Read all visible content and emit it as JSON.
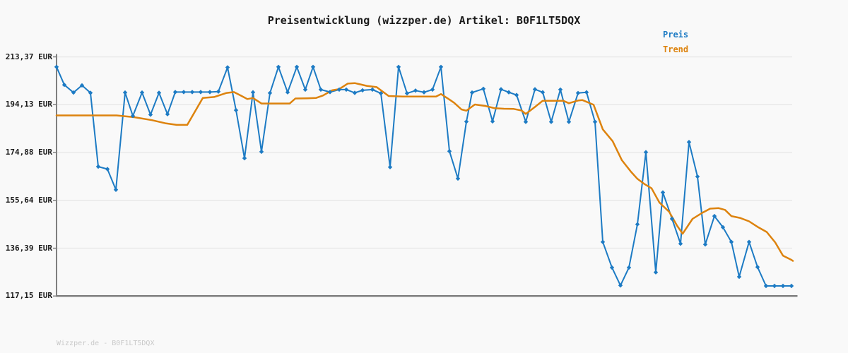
{
  "title": "Preisentwicklung (wizzper.de) Artikel: B0F1LT5DQX",
  "legend": {
    "preis": "Preis",
    "trend": "Trend"
  },
  "watermark": "Wizzper.de - B0F1LT5DQX",
  "colors": {
    "preis": "#1d7bc4",
    "trend": "#dd830e",
    "axis": "#7f7f7f",
    "grid": "#e9e9e9",
    "background": "#f9f9f9",
    "label": "#1a1a1a",
    "watermark": "#c9c9c9"
  },
  "y_axis": {
    "unit": "EUR",
    "tick_labels": [
      "213,37 EUR",
      "194,13 EUR",
      "174,88 EUR",
      "155,64 EUR",
      "136,39 EUR",
      "117,15 EUR"
    ],
    "tick_values": [
      213.37,
      194.13,
      174.88,
      155.64,
      136.39,
      117.15
    ]
  },
  "x_axis": {
    "tick_labels": []
  },
  "chart_data": {
    "type": "line",
    "title": "Preisentwicklung (wizzper.de) Artikel: B0F1LT5DQX",
    "xlabel": "",
    "ylabel": "EUR",
    "ylim": [
      117.15,
      213.37
    ],
    "grid": "horizontal",
    "legend_position": "top-right",
    "x_unit": "pixel-position (no x tick labels shown in chart)",
    "series": [
      {
        "name": "Preis",
        "color": "#1d7bc4",
        "marker": "diamond",
        "points": [
          [
            80,
            209.3
          ],
          [
            91,
            202.1
          ],
          [
            104,
            199.0
          ],
          [
            116,
            201.9
          ],
          [
            128,
            198.9
          ],
          [
            139,
            169.2
          ],
          [
            152,
            168.2
          ],
          [
            164,
            159.9
          ],
          [
            177,
            199.0
          ],
          [
            188,
            189.6
          ],
          [
            201,
            199.0
          ],
          [
            213,
            190.1
          ],
          [
            225,
            198.9
          ],
          [
            237,
            190.3
          ],
          [
            248,
            199.2
          ],
          [
            260,
            199.2
          ],
          [
            272,
            199.2
          ],
          [
            284,
            199.2
          ],
          [
            297,
            199.2
          ],
          [
            309,
            199.4
          ],
          [
            322,
            209.1
          ],
          [
            334,
            191.9
          ],
          [
            346,
            172.6
          ],
          [
            358,
            199.1
          ],
          [
            370,
            175.2
          ],
          [
            382,
            198.8
          ],
          [
            394,
            209.3
          ],
          [
            407,
            199.1
          ],
          [
            420,
            209.3
          ],
          [
            432,
            200.2
          ],
          [
            443,
            209.3
          ],
          [
            454,
            200.2
          ],
          [
            467,
            199.2
          ],
          [
            480,
            200.2
          ],
          [
            490,
            200.2
          ],
          [
            502,
            198.9
          ],
          [
            513,
            199.9
          ],
          [
            527,
            200.2
          ],
          [
            539,
            198.7
          ],
          [
            552,
            169.0
          ],
          [
            564,
            209.3
          ],
          [
            576,
            198.7
          ],
          [
            588,
            199.8
          ],
          [
            600,
            199.1
          ],
          [
            612,
            200.2
          ],
          [
            624,
            209.3
          ],
          [
            636,
            175.4
          ],
          [
            648,
            164.4
          ],
          [
            660,
            187.3
          ],
          [
            668,
            199.0
          ],
          [
            684,
            200.5
          ],
          [
            697,
            187.4
          ],
          [
            709,
            200.3
          ],
          [
            720,
            199.1
          ],
          [
            731,
            198.0
          ],
          [
            744,
            187.2
          ],
          [
            757,
            200.3
          ],
          [
            768,
            199.1
          ],
          [
            780,
            187.2
          ],
          [
            793,
            200.2
          ],
          [
            805,
            187.2
          ],
          [
            818,
            198.8
          ],
          [
            830,
            199.1
          ],
          [
            842,
            187.2
          ],
          [
            853,
            138.9
          ],
          [
            866,
            128.6
          ],
          [
            878,
            121.4
          ],
          [
            890,
            128.6
          ],
          [
            902,
            146.0
          ],
          [
            914,
            175.0
          ],
          [
            928,
            126.7
          ],
          [
            938,
            158.8
          ],
          [
            951,
            148.2
          ],
          [
            963,
            138.2
          ],
          [
            975,
            179.1
          ],
          [
            987,
            165.2
          ],
          [
            998,
            137.9
          ],
          [
            1011,
            149.3
          ],
          [
            1023,
            144.8
          ],
          [
            1035,
            138.9
          ],
          [
            1046,
            124.9
          ],
          [
            1060,
            138.9
          ],
          [
            1072,
            128.8
          ],
          [
            1084,
            121.2
          ],
          [
            1096,
            121.2
          ],
          [
            1108,
            121.2
          ],
          [
            1120,
            121.2
          ]
        ]
      },
      {
        "name": "Trend",
        "color": "#dd830e",
        "marker": "none",
        "points": [
          [
            80,
            189.8
          ],
          [
            120,
            189.8
          ],
          [
            165,
            189.8
          ],
          [
            190,
            189.1
          ],
          [
            215,
            187.9
          ],
          [
            235,
            186.6
          ],
          [
            250,
            186.0
          ],
          [
            265,
            186.0
          ],
          [
            287,
            196.8
          ],
          [
            303,
            197.2
          ],
          [
            320,
            198.8
          ],
          [
            331,
            199.2
          ],
          [
            342,
            197.6
          ],
          [
            350,
            196.4
          ],
          [
            358,
            196.8
          ],
          [
            370,
            194.6
          ],
          [
            395,
            194.6
          ],
          [
            410,
            194.6
          ],
          [
            418,
            196.6
          ],
          [
            435,
            196.7
          ],
          [
            447,
            196.8
          ],
          [
            457,
            197.8
          ],
          [
            470,
            199.9
          ],
          [
            480,
            200.4
          ],
          [
            492,
            202.6
          ],
          [
            502,
            202.8
          ],
          [
            519,
            201.7
          ],
          [
            533,
            201.2
          ],
          [
            550,
            197.6
          ],
          [
            570,
            197.4
          ],
          [
            600,
            197.4
          ],
          [
            617,
            197.4
          ],
          [
            624,
            198.4
          ],
          [
            637,
            196.0
          ],
          [
            643,
            194.8
          ],
          [
            653,
            192.2
          ],
          [
            660,
            191.7
          ],
          [
            672,
            194.2
          ],
          [
            687,
            193.6
          ],
          [
            700,
            192.7
          ],
          [
            713,
            192.5
          ],
          [
            727,
            192.4
          ],
          [
            738,
            191.8
          ],
          [
            744,
            190.4
          ],
          [
            757,
            193.2
          ],
          [
            768,
            195.7
          ],
          [
            785,
            195.7
          ],
          [
            797,
            195.7
          ],
          [
            805,
            194.7
          ],
          [
            818,
            195.8
          ],
          [
            824,
            196.0
          ],
          [
            840,
            194.1
          ],
          [
            853,
            184.2
          ],
          [
            867,
            179.4
          ],
          [
            880,
            171.8
          ],
          [
            893,
            167.1
          ],
          [
            902,
            164.3
          ],
          [
            912,
            162.2
          ],
          [
            922,
            160.5
          ],
          [
            933,
            154.8
          ],
          [
            947,
            151.0
          ],
          [
            958,
            145.5
          ],
          [
            966,
            142.2
          ],
          [
            980,
            148.2
          ],
          [
            993,
            150.5
          ],
          [
            1005,
            152.3
          ],
          [
            1017,
            152.5
          ],
          [
            1026,
            151.8
          ],
          [
            1035,
            149.3
          ],
          [
            1047,
            148.6
          ],
          [
            1060,
            147.2
          ],
          [
            1073,
            144.8
          ],
          [
            1085,
            142.9
          ],
          [
            1097,
            138.7
          ],
          [
            1108,
            133.4
          ],
          [
            1120,
            131.7
          ],
          [
            1122,
            131.3
          ]
        ]
      }
    ]
  }
}
